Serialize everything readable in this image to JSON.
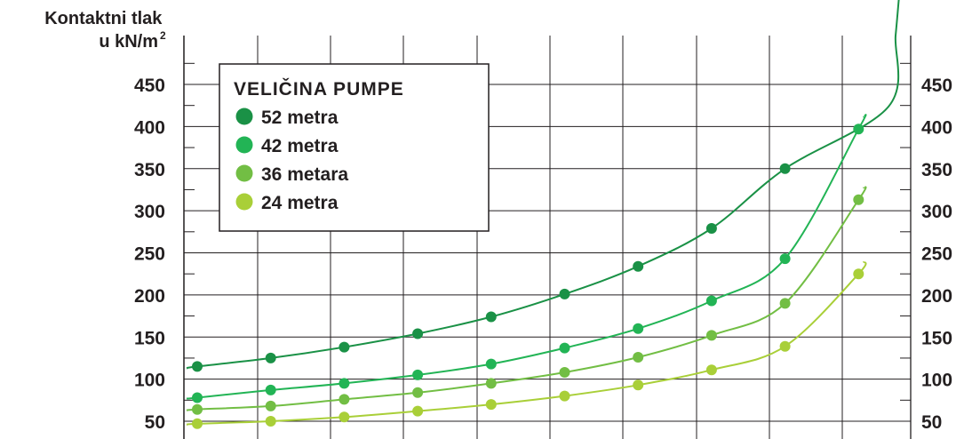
{
  "chart_data": {
    "type": "line",
    "ylabel_line1": "Kontaktni tlak",
    "ylabel_line2": "u kN/m",
    "ylabel_sup": "2",
    "y_ticks": [
      50,
      100,
      150,
      200,
      250,
      300,
      350,
      400,
      450
    ],
    "ylim": [
      40,
      500
    ],
    "x": [
      1,
      2,
      3,
      4,
      5,
      6,
      7,
      8,
      9,
      10
    ],
    "grid": true,
    "legend": {
      "title": "VELIČINA PUMPE",
      "placement": "top-left"
    },
    "series": [
      {
        "name": "52 metra",
        "color": "#1a9146",
        "values": [
          115,
          125,
          138,
          154,
          174,
          201,
          234,
          279,
          350,
          null
        ]
      },
      {
        "name": "42 metra",
        "color": "#22b455",
        "values": [
          78,
          87,
          95,
          105,
          118,
          137,
          160,
          193,
          243,
          397
        ]
      },
      {
        "name": "36 metara",
        "color": "#72be44",
        "values": [
          64,
          68,
          76,
          84,
          95,
          108,
          126,
          152,
          190,
          313
        ]
      },
      {
        "name": "24 metra",
        "color": "#a9cf38",
        "values": [
          47,
          50,
          55,
          62,
          70,
          80,
          93,
          111,
          139,
          225
        ]
      }
    ]
  }
}
